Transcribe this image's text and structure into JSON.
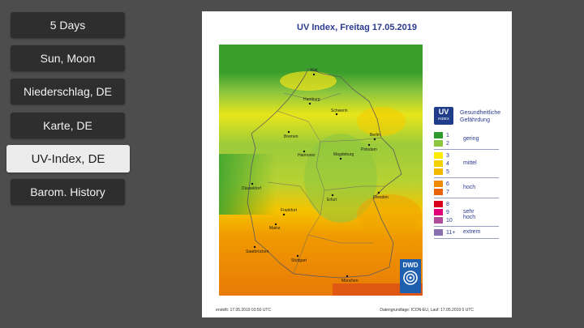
{
  "menu": {
    "items": [
      {
        "label": "5 Days"
      },
      {
        "label": "Sun, Moon"
      },
      {
        "label": "Niederschlag, DE"
      },
      {
        "label": "Karte, DE"
      },
      {
        "label": "UV-Index, DE"
      },
      {
        "label": "Barom. History"
      }
    ],
    "active_index": 4
  },
  "map": {
    "title": "UV Index, Freitag 17.05.2019",
    "cities": [
      "Kiel",
      "Hamburg",
      "Schwerin",
      "Bremen",
      "Berlin",
      "Potsdam",
      "Hannover",
      "Magdeburg",
      "Düsseldorf",
      "Erfurt",
      "Dresden",
      "Frankfurt",
      "Mainz",
      "Saarbrücken",
      "Stuttgart",
      "München"
    ],
    "legend": {
      "logo_top": "UV",
      "logo_bottom": "INDEX",
      "heading": "Gesundheitliche Gefährdung",
      "levels": [
        {
          "value": "1",
          "color": "#2e9a2e"
        },
        {
          "value": "2",
          "color": "#8cc63f"
        },
        {
          "value": "3",
          "color": "#ffeb00"
        },
        {
          "value": "4",
          "color": "#f5d000"
        },
        {
          "value": "5",
          "color": "#f2b800"
        },
        {
          "value": "6",
          "color": "#f08a00"
        },
        {
          "value": "7",
          "color": "#e8620a"
        },
        {
          "value": "8",
          "color": "#d9001b"
        },
        {
          "value": "9",
          "color": "#e2007a"
        },
        {
          "value": "10",
          "color": "#b04a9a"
        },
        {
          "value": "11+",
          "color": "#8a6fb0"
        }
      ],
      "groups": [
        "gering",
        "mittel",
        "hoch",
        "sehr hoch",
        "extrem"
      ]
    },
    "footer_left": "erstellt: 17.05.2019 03:50 UTC",
    "footer_right": "Datengrundlage: ICON-EU, Lauf: 17.05.2019 0 UTC",
    "logo_text": "DWD"
  }
}
